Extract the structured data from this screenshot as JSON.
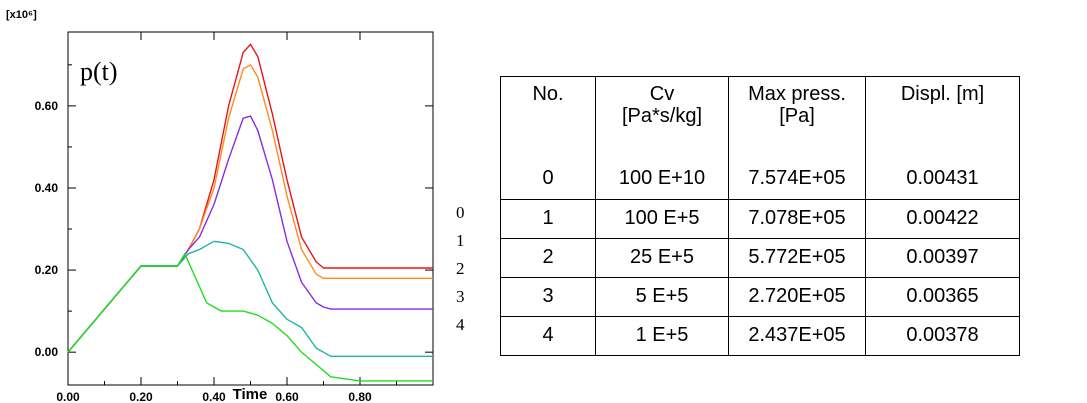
{
  "chart_data": {
    "type": "line",
    "scale_label": "[x10⁶]",
    "annotation": "p(t)",
    "xlabel": "Time",
    "ylabel": "",
    "xlim": [
      0,
      1.0
    ],
    "ylim": [
      -0.08,
      0.78
    ],
    "x_ticks": [
      "0.00",
      "0.20",
      "0.40",
      "0.60",
      "0.80"
    ],
    "x_tick_values": [
      0,
      0.2,
      0.4,
      0.6,
      0.8
    ],
    "y_ticks": [
      "0.00",
      "0.20",
      "0.40",
      "0.60"
    ],
    "y_tick_values": [
      0,
      0.2,
      0.4,
      0.6
    ],
    "series": [
      {
        "name": "0",
        "color": "#e8141b",
        "x": [
          0,
          0.2,
          0.3,
          0.33,
          0.36,
          0.4,
          0.44,
          0.48,
          0.5,
          0.52,
          0.56,
          0.6,
          0.64,
          0.68,
          0.7,
          0.72,
          0.8,
          0.9,
          1.0
        ],
        "y": [
          0,
          0.21,
          0.21,
          0.25,
          0.3,
          0.42,
          0.6,
          0.73,
          0.75,
          0.72,
          0.58,
          0.42,
          0.28,
          0.22,
          0.205,
          0.205,
          0.205,
          0.205,
          0.205
        ]
      },
      {
        "name": "1",
        "color": "#ff8a1f",
        "x": [
          0,
          0.2,
          0.3,
          0.33,
          0.36,
          0.4,
          0.44,
          0.48,
          0.5,
          0.52,
          0.56,
          0.6,
          0.64,
          0.68,
          0.7,
          0.72,
          0.8,
          0.9,
          1.0
        ],
        "y": [
          0,
          0.21,
          0.21,
          0.25,
          0.3,
          0.4,
          0.57,
          0.69,
          0.7,
          0.67,
          0.54,
          0.38,
          0.25,
          0.19,
          0.18,
          0.18,
          0.18,
          0.18,
          0.18
        ]
      },
      {
        "name": "2",
        "color": "#8a2be2",
        "x": [
          0,
          0.2,
          0.3,
          0.33,
          0.36,
          0.4,
          0.44,
          0.48,
          0.5,
          0.52,
          0.56,
          0.6,
          0.64,
          0.68,
          0.7,
          0.72,
          0.8,
          0.9,
          1.0
        ],
        "y": [
          0,
          0.21,
          0.21,
          0.25,
          0.28,
          0.36,
          0.47,
          0.57,
          0.575,
          0.54,
          0.42,
          0.27,
          0.17,
          0.12,
          0.11,
          0.105,
          0.105,
          0.105,
          0.105
        ]
      },
      {
        "name": "3",
        "color": "#20b2aa",
        "x": [
          0,
          0.2,
          0.3,
          0.33,
          0.36,
          0.4,
          0.44,
          0.48,
          0.52,
          0.56,
          0.6,
          0.64,
          0.68,
          0.72,
          0.8,
          0.9,
          1.0
        ],
        "y": [
          0,
          0.21,
          0.21,
          0.24,
          0.25,
          0.27,
          0.265,
          0.25,
          0.2,
          0.12,
          0.08,
          0.06,
          0.01,
          -0.01,
          -0.01,
          -0.01,
          -0.01
        ]
      },
      {
        "name": "4",
        "color": "#22dd22",
        "x": [
          0,
          0.2,
          0.3,
          0.32,
          0.34,
          0.36,
          0.38,
          0.42,
          0.48,
          0.52,
          0.56,
          0.6,
          0.64,
          0.68,
          0.72,
          0.8,
          0.9,
          1.0
        ],
        "y": [
          0,
          0.21,
          0.21,
          0.24,
          0.2,
          0.16,
          0.12,
          0.1,
          0.1,
          0.09,
          0.07,
          0.04,
          0.0,
          -0.03,
          -0.06,
          -0.07,
          -0.07,
          -0.07
        ]
      }
    ]
  },
  "table": {
    "headers": [
      [
        "No."
      ],
      [
        "Cv",
        "[Pa*s/kg]"
      ],
      [
        "Max press.",
        "[Pa]"
      ],
      [
        "Displ. [m]"
      ]
    ],
    "rows": [
      [
        "0",
        "100 E+10",
        "7.574E+05",
        "0.00431"
      ],
      [
        "1",
        "100 E+5",
        "7.078E+05",
        "0.00422"
      ],
      [
        "2",
        "25 E+5",
        "5.772E+05",
        "0.00397"
      ],
      [
        "3",
        "5 E+5",
        "2.720E+05",
        "0.00365"
      ],
      [
        "4",
        "1 E+5",
        "2.437E+05",
        "0.00378"
      ]
    ]
  }
}
